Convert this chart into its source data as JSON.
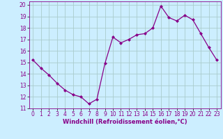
{
  "x": [
    0,
    1,
    2,
    3,
    4,
    5,
    6,
    7,
    8,
    9,
    10,
    11,
    12,
    13,
    14,
    15,
    16,
    17,
    18,
    19,
    20,
    21,
    22,
    23
  ],
  "y": [
    15.2,
    14.5,
    13.9,
    13.2,
    12.6,
    12.2,
    12.0,
    11.4,
    11.8,
    14.9,
    17.2,
    16.7,
    17.0,
    17.4,
    17.5,
    18.0,
    19.9,
    18.9,
    18.6,
    19.1,
    18.7,
    17.5,
    16.3,
    15.2
  ],
  "line_color": "#880088",
  "marker": "D",
  "marker_size": 2,
  "bg_color": "#cceeff",
  "grid_color": "#aacccc",
  "xlabel": "Windchill (Refroidissement éolien,°C)",
  "xlim": [
    -0.5,
    23.5
  ],
  "ylim": [
    11,
    20.3
  ],
  "yticks": [
    11,
    12,
    13,
    14,
    15,
    16,
    17,
    18,
    19,
    20
  ],
  "xticks": [
    0,
    1,
    2,
    3,
    4,
    5,
    6,
    7,
    8,
    9,
    10,
    11,
    12,
    13,
    14,
    15,
    16,
    17,
    18,
    19,
    20,
    21,
    22,
    23
  ],
  "tick_fontsize": 5.5,
  "xlabel_fontsize": 6,
  "xlabel_fontweight": "bold"
}
